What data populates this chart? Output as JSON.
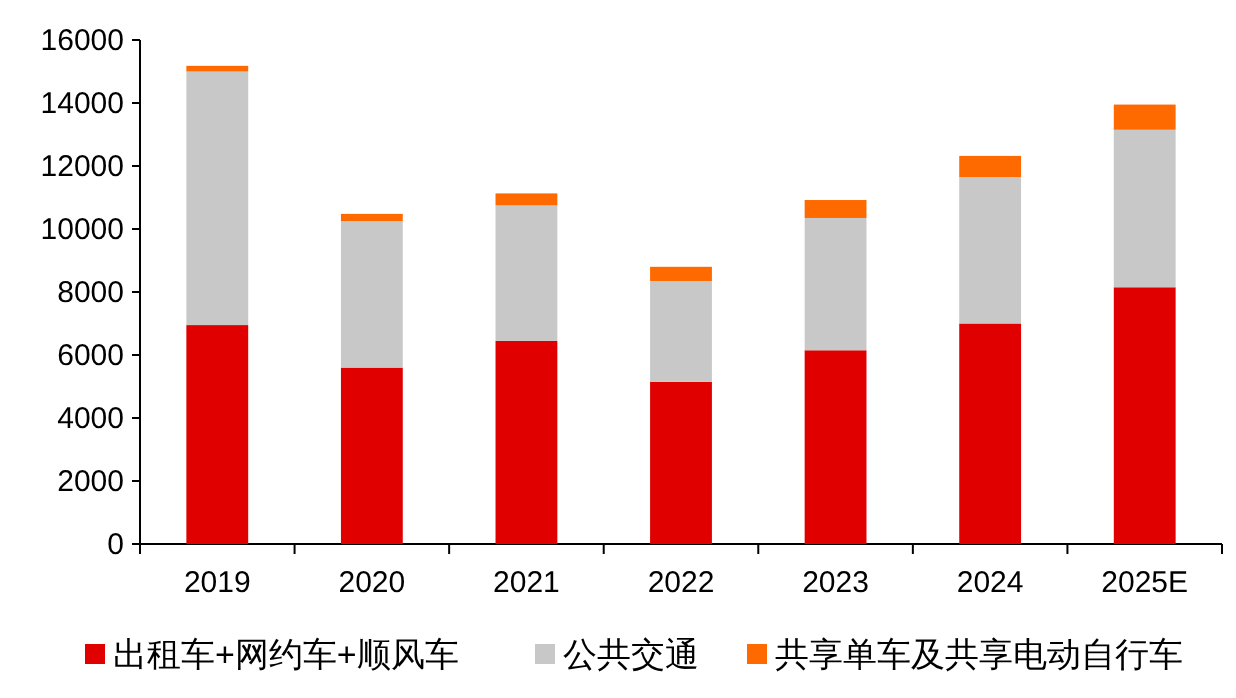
{
  "chart_data": {
    "type": "bar",
    "stacked": true,
    "categories": [
      "2019",
      "2020",
      "2021",
      "2022",
      "2023",
      "2024",
      "2025E"
    ],
    "ylim": [
      0,
      16000
    ],
    "yticks": [
      0,
      2000,
      4000,
      6000,
      8000,
      10000,
      12000,
      14000,
      16000
    ],
    "grid": false,
    "legend": "bottom",
    "series": [
      {
        "name": "出租车+网约车+顺风车",
        "color": "#e00000",
        "values": [
          6950,
          5600,
          6450,
          5150,
          6150,
          7000,
          8150
        ]
      },
      {
        "name": "公共交通",
        "color": "#c8c8c8",
        "values": [
          8050,
          4650,
          4300,
          3200,
          4200,
          4650,
          5000
        ]
      },
      {
        "name": "共享单车及共享电动自行车",
        "color": "#ff6a00",
        "values": [
          180,
          230,
          380,
          450,
          570,
          670,
          800
        ]
      }
    ]
  }
}
